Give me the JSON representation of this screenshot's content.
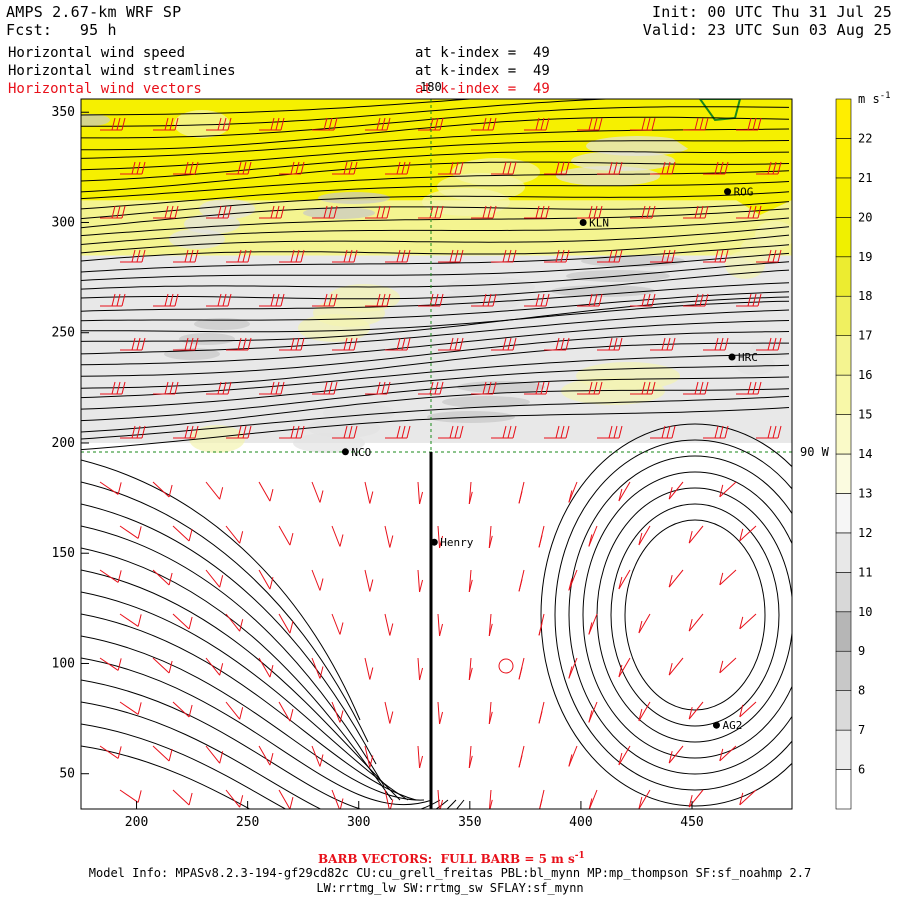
{
  "header": {
    "title": "AMPS 2.67-km WRF SP",
    "forecast": "Fcst:   95 h",
    "init": "Init: 00 UTC Thu 31 Jul 25",
    "valid": "Valid: 23 UTC Sun 03 Aug 25",
    "fields": [
      {
        "name": "Horizontal wind speed",
        "level": "at k-index =  49"
      },
      {
        "name": "Horizontal wind streamlines",
        "level": "at k-index =  49"
      },
      {
        "name": "Horizontal wind vectors",
        "level": "at k-index =  49"
      }
    ]
  },
  "map_labels": {
    "meridian": "180",
    "parallel": "90 W",
    "stations": [
      {
        "name": "ROG",
        "x": 466,
        "y": 314
      },
      {
        "name": "KLN",
        "x": 401,
        "y": 300
      },
      {
        "name": "HRC",
        "x": 468,
        "y": 239
      },
      {
        "name": "NCO",
        "x": 294,
        "y": 196
      },
      {
        "name": "Henry",
        "x": 334,
        "y": 155
      },
      {
        "name": "AG2",
        "x": 461,
        "y": 72
      }
    ]
  },
  "colorbar": {
    "units": "m s",
    "units_exp": "-1",
    "ticks": [
      "6",
      "7",
      "8",
      "9",
      "10",
      "11",
      "12",
      "13",
      "14",
      "15",
      "16",
      "17",
      "18",
      "19",
      "20",
      "21",
      "22"
    ],
    "colors": [
      "#ffffff",
      "#ececec",
      "#dadada",
      "#c8c8c8",
      "#b6b6b6",
      "#d8d8d8",
      "#e8e8e8",
      "#f6f6f6",
      "#fbfbe0",
      "#fafac8",
      "#f8f8a8",
      "#f4f490",
      "#f0f060",
      "#ecec30",
      "#f0f000",
      "#f6f000",
      "#fcf000",
      "#ffee00"
    ]
  },
  "chart_data": {
    "type": "heatmap",
    "title": "Horizontal wind speed / streamlines / vectors",
    "x_ticks": [
      200,
      250,
      300,
      350,
      400,
      450
    ],
    "y_ticks": [
      50,
      100,
      150,
      200,
      250,
      300,
      350
    ],
    "xlim": [
      175,
      495
    ],
    "ylim": [
      34,
      356
    ],
    "colorbar_range": [
      5,
      23
    ],
    "colorbar_units": "m s-1",
    "wind_speed_bands": [
      {
        "y_from": 310,
        "y_to": 356,
        "speed": 20
      },
      {
        "y_from": 285,
        "y_to": 310,
        "speed": 16
      },
      {
        "y_from": 200,
        "y_to": 285,
        "speed": 11
      },
      {
        "y_from": 34,
        "y_to": 200,
        "speed": 5
      }
    ]
  },
  "footer": {
    "barb": "BARB VECTORS:  FULL BARB = 5 m s",
    "barb_exp": "-1",
    "model_line1": "Model Info: MPASv8.2.3-194-gf29cd82c CU:cu_grell_freitas PBL:bl_mynn MP:mp_thompson SF:sf_noahmp 2.7",
    "model_line2": "LW:rrtmg_lw SW:rrtmg_sw SFLAY:sf_mynn"
  }
}
